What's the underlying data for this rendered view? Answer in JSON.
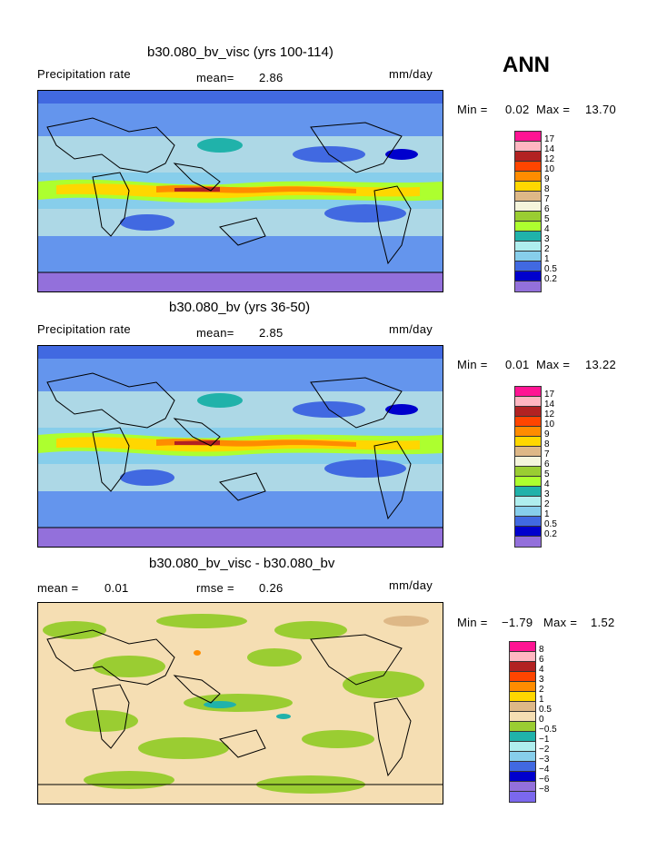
{
  "season": "ANN",
  "panels": [
    {
      "title": "b30.080_bv_visc (yrs 100-114)",
      "left_label": "Precipitation rate",
      "mean_label": "mean=",
      "mean_value": "2.86",
      "units": "mm/day",
      "min_label": "Min =",
      "min_value": "0.02",
      "max_label": "Max =",
      "max_value": "13.70",
      "levels": [
        "17",
        "14",
        "12",
        "10",
        "9",
        "8",
        "7",
        "6",
        "5",
        "4",
        "3",
        "2",
        "1",
        "0.5",
        "0.2"
      ],
      "colors": [
        "#ff1493",
        "#ffb6c1",
        "#b22222",
        "#ff4500",
        "#ff8c00",
        "#ffd700",
        "#deb887",
        "#f5f5dc",
        "#9acd32",
        "#adff2f",
        "#20b2aa",
        "#afeeee",
        "#87ceeb",
        "#4169e1",
        "#0000cd",
        "#9370db"
      ]
    },
    {
      "title": "b30.080_bv (yrs 36-50)",
      "left_label": "Precipitation rate",
      "mean_label": "mean=",
      "mean_value": "2.85",
      "units": "mm/day",
      "min_label": "Min =",
      "min_value": "0.01",
      "max_label": "Max =",
      "max_value": "13.22",
      "levels": [
        "17",
        "14",
        "12",
        "10",
        "9",
        "8",
        "7",
        "6",
        "5",
        "4",
        "3",
        "2",
        "1",
        "0.5",
        "0.2"
      ],
      "colors": [
        "#ff1493",
        "#ffb6c1",
        "#b22222",
        "#ff4500",
        "#ff8c00",
        "#ffd700",
        "#deb887",
        "#f5f5dc",
        "#9acd32",
        "#adff2f",
        "#20b2aa",
        "#afeeee",
        "#87ceeb",
        "#4169e1",
        "#0000cd",
        "#9370db"
      ]
    },
    {
      "title": "b30.080_bv_visc - b30.080_bv",
      "mean_label": "mean =",
      "mean_value": "0.01",
      "rmse_label": "rmse =",
      "rmse_value": "0.26",
      "units": "mm/day",
      "min_label": "Min =",
      "min_value": "−1.79",
      "max_label": "Max =",
      "max_value": "1.52",
      "levels": [
        "8",
        "6",
        "4",
        "3",
        "2",
        "1",
        "0.5",
        "0",
        "−0.5",
        "−1",
        "−2",
        "−3",
        "−4",
        "−6",
        "−8"
      ],
      "colors": [
        "#ff1493",
        "#ffb6c1",
        "#b22222",
        "#ff4500",
        "#ff8c00",
        "#ffd700",
        "#deb887",
        "#f5deb3",
        "#9acd32",
        "#20b2aa",
        "#afeeee",
        "#87ceeb",
        "#4169e1",
        "#0000cd",
        "#9370db",
        "#7b68ee"
      ]
    }
  ]
}
